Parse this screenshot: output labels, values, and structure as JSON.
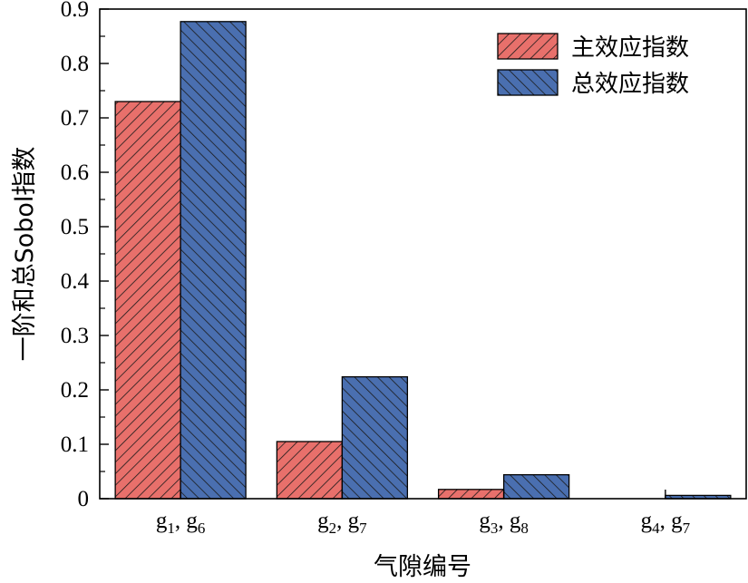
{
  "chart_data": {
    "type": "bar",
    "xlabel": "气隙编号",
    "ylabel": "一阶和总Sobol指数",
    "ylim": [
      0,
      0.9
    ],
    "yticks": [
      "0",
      "0.1",
      "0.2",
      "0.3",
      "0.4",
      "0.5",
      "0.6",
      "0.7",
      "0.8",
      "0.9"
    ],
    "categories": [
      {
        "a": "g",
        "a_sub": "1",
        "b": "g",
        "b_sub": "6"
      },
      {
        "a": "g",
        "a_sub": "2",
        "b": "g",
        "b_sub": "7"
      },
      {
        "a": "g",
        "a_sub": "3",
        "b": "g",
        "b_sub": "8"
      },
      {
        "a": "g",
        "a_sub": "4",
        "b": "g",
        "b_sub": "7"
      }
    ],
    "separator": ",",
    "series": [
      {
        "name": "主效应指数",
        "values": [
          0.73,
          0.105,
          0.017,
          0.0
        ],
        "color": "#e8706b",
        "hatch": "forward"
      },
      {
        "name": "总效应指数",
        "values": [
          0.877,
          0.224,
          0.044,
          0.006
        ],
        "color": "#4a6fb0",
        "hatch": "backward"
      }
    ],
    "legend": "top-right",
    "grid": false
  }
}
